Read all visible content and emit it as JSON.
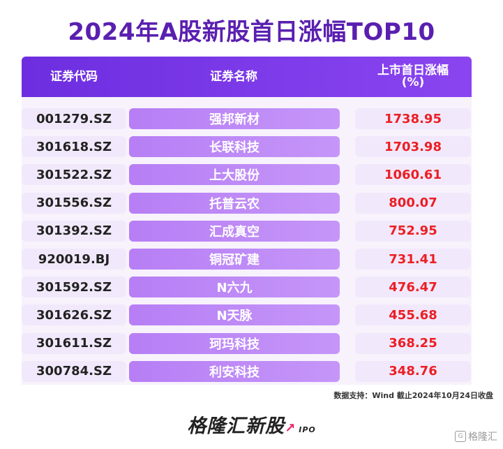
{
  "title": "2024年A股新股首日涨幅TOP10",
  "headers": {
    "code": "证券代码",
    "name": "证券名称",
    "pct_line1": "上市首日涨幅",
    "pct_line2": "(%)"
  },
  "chart_data": {
    "type": "table",
    "title": "2024年A股新股首日涨幅TOP10",
    "columns": [
      "证券代码",
      "证券名称",
      "上市首日涨幅 (%)"
    ],
    "rows": [
      {
        "code": "001279.SZ",
        "name": "强邦新材",
        "pct": "1738.95"
      },
      {
        "code": "301618.SZ",
        "name": "长联科技",
        "pct": "1703.98"
      },
      {
        "code": "301522.SZ",
        "name": "上大股份",
        "pct": "1060.61"
      },
      {
        "code": "301556.SZ",
        "name": "托普云农",
        "pct": "800.07"
      },
      {
        "code": "301392.SZ",
        "name": "汇成真空",
        "pct": "752.95"
      },
      {
        "code": "920019.BJ",
        "name": "铜冠矿建",
        "pct": "731.41"
      },
      {
        "code": "301592.SZ",
        "name": "N六九",
        "pct": "476.47"
      },
      {
        "code": "301626.SZ",
        "name": "N天脉",
        "pct": "455.68"
      },
      {
        "code": "301611.SZ",
        "name": "珂玛科技",
        "pct": "368.25"
      },
      {
        "code": "300784.SZ",
        "name": "利安科技",
        "pct": "348.76"
      }
    ]
  },
  "source": "数据支持：Wind  截止2024年10月24日收盘",
  "brand": {
    "name": "格隆汇新股",
    "suffix": "IPO"
  },
  "watermark": {
    "logo": "G",
    "text": "格隆汇"
  },
  "colors": {
    "accent": "#6d2ee0",
    "name_cell": "#b77ef5",
    "value_text": "#ec1e24"
  }
}
